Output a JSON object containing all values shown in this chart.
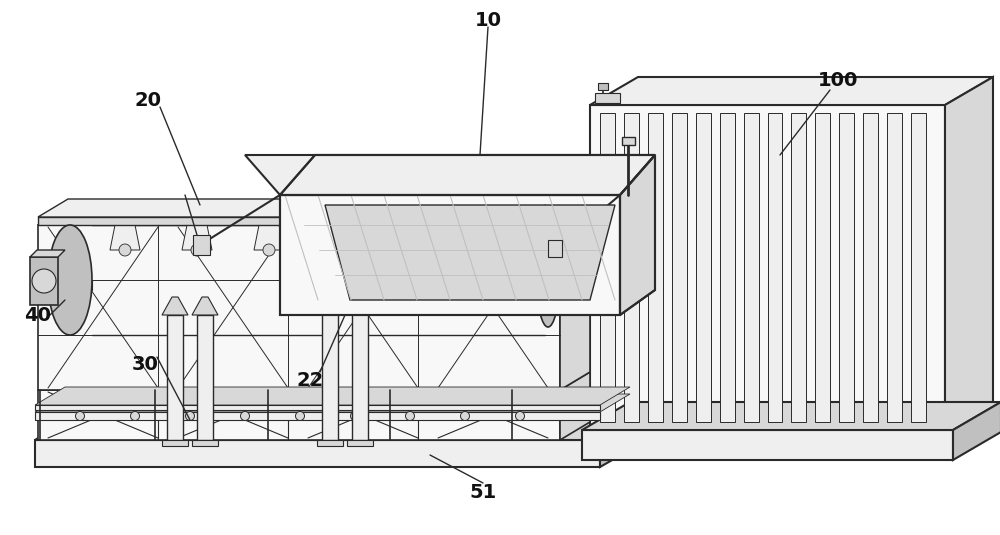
{
  "bg_color": "#ffffff",
  "lc": "#2a2a2a",
  "fill_white": "#f8f8f8",
  "fill_light": "#efefef",
  "fill_mid": "#d8d8d8",
  "fill_dark": "#c0c0c0",
  "fill_darker": "#a8a8a8",
  "fill_top": "#e8e8e8",
  "figsize": [
    10.0,
    5.35
  ],
  "dpi": 100
}
